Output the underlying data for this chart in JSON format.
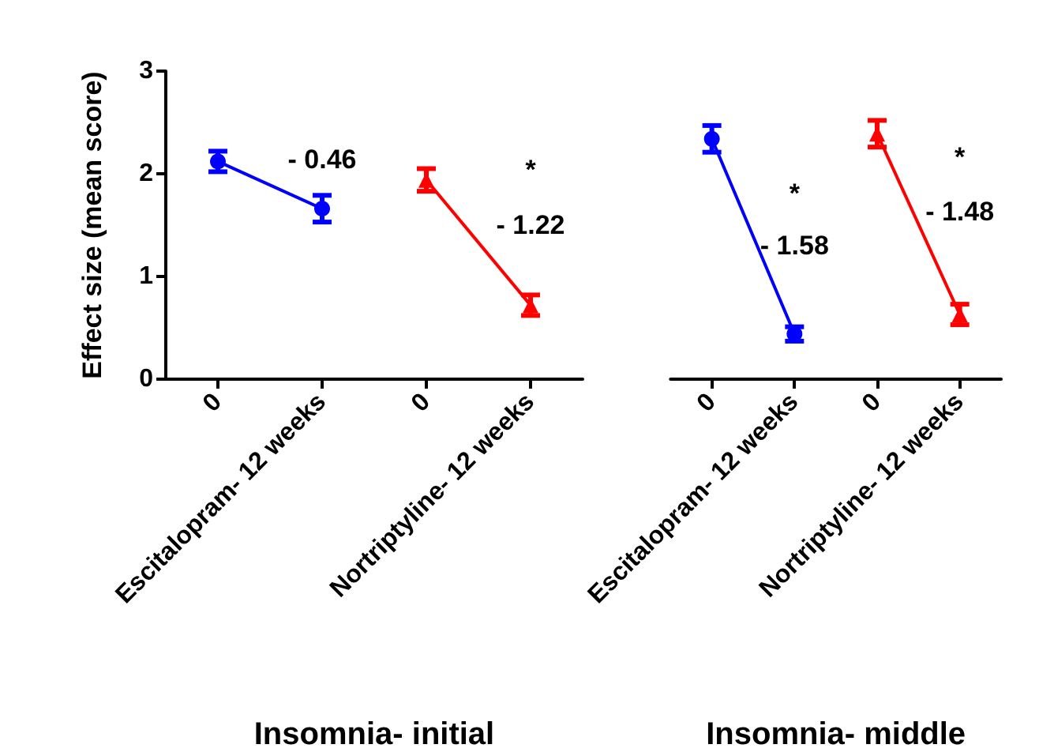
{
  "chart_data": [
    {
      "type": "line",
      "xlabel": "Insomnia- initial",
      "ylabel": "Effect size (mean score)",
      "categories": [
        "0",
        "Escitalopram- 12 weeks",
        "0",
        "Nortriptyline- 12 weeks"
      ],
      "series": [
        {
          "color": "#0000ff",
          "marker": "circle",
          "values": [
            2.12,
            1.66,
            null,
            null
          ],
          "errors": [
            0.1,
            0.13,
            null,
            null
          ]
        },
        {
          "color": "#ff0000",
          "marker": "triangle",
          "values": [
            null,
            null,
            1.94,
            0.72
          ],
          "errors": [
            null,
            null,
            0.11,
            0.1
          ]
        }
      ],
      "ylim": [
        0,
        3
      ],
      "yticks": [
        0,
        1,
        2,
        3
      ],
      "grid": false,
      "annotations": [
        "- 0.46",
        "*",
        "- 1.22"
      ]
    },
    {
      "type": "line",
      "xlabel": "Insomnia- middle",
      "categories": [
        "0",
        "Escitalopram- 12 weeks",
        "0",
        "Nortriptyline- 12 weeks"
      ],
      "series": [
        {
          "color": "#0000ff",
          "marker": "circle",
          "values": [
            2.34,
            0.44,
            null,
            null
          ],
          "errors": [
            0.13,
            0.07,
            null,
            null
          ]
        },
        {
          "color": "#ff0000",
          "marker": "triangle",
          "values": [
            null,
            null,
            2.39,
            0.63
          ],
          "errors": [
            null,
            null,
            0.13,
            0.1
          ]
        }
      ],
      "ylim": [
        0,
        3
      ],
      "yticks": [
        0,
        1,
        2,
        3
      ],
      "grid": false,
      "tick_labels": "x",
      "annotations": [
        "*",
        "- 1.58",
        "*",
        "- 1.48"
      ]
    }
  ]
}
